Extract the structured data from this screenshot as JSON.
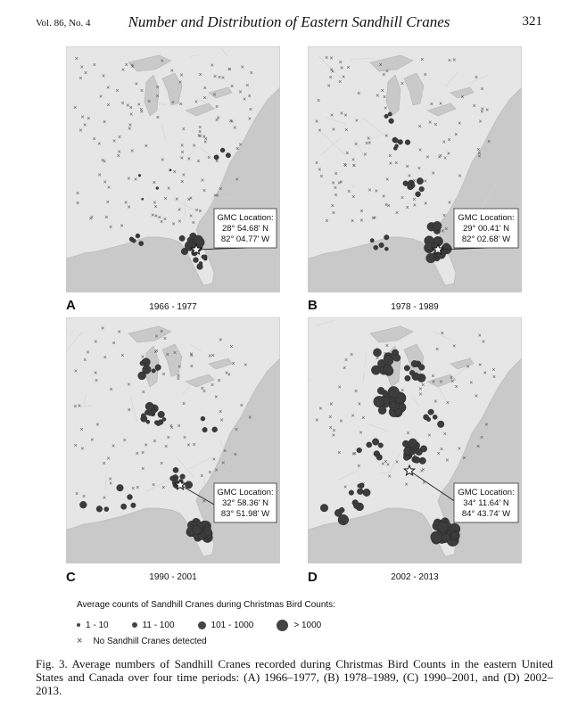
{
  "header": {
    "volume": "Vol. 86, No. 4",
    "title": "Number and Distribution of Eastern Sandhill Cranes",
    "page_number": "321"
  },
  "panels": [
    {
      "letter": "A",
      "period": "1966 - 1977",
      "gmc_label": "GMC Location:",
      "gmc_lat": "28° 54.68' N",
      "gmc_lon": "82° 04.77' W"
    },
    {
      "letter": "B",
      "period": "1978 - 1989",
      "gmc_label": "GMC Location:",
      "gmc_lat": "29° 00.41' N",
      "gmc_lon": "82° 02.68' W"
    },
    {
      "letter": "C",
      "period": "1990 - 2001",
      "gmc_label": "GMC Location:",
      "gmc_lat": "32° 58.36' N",
      "gmc_lon": "83° 51.98' W"
    },
    {
      "letter": "D",
      "period": "2002 - 2013",
      "gmc_label": "GMC Location:",
      "gmc_lat": "34° 11.64' N",
      "gmc_lon": "84° 43.74' W"
    }
  ],
  "legend": {
    "title": "Average counts of Sandhill Cranes during Christmas Bird Counts:",
    "items": [
      {
        "label": "1 - 10"
      },
      {
        "label": "11 - 100"
      },
      {
        "label": "101 - 1000"
      },
      {
        "label": "> 1000"
      }
    ],
    "none_label": "No Sandhill Cranes detected"
  },
  "caption": "Fig. 3. Average numbers of Sandhill Cranes recorded during Christmas Bird Counts in the eastern United States and Canada over four time periods: (A) 1966–1977, (B) 1978–1989, (C) 1990–2001, and (D) 2002–2013.",
  "colors": {
    "land": "#e6e6e6",
    "water": "#c9c9c9",
    "marker": "#3c3c3c"
  }
}
